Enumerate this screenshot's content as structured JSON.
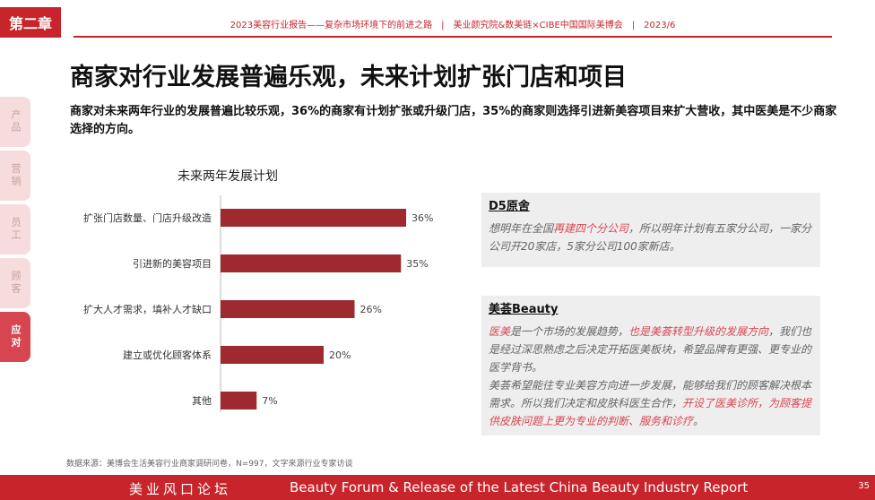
{
  "header": {
    "chapter_badge": "第二章",
    "report_line": "2023美容行业报告——复杂市场环境下的前进之路　|　美业颜究院&数美链×CIBE中国国际美博会　|　2023/6"
  },
  "title": "商家对行业发展普遍乐观，未来计划扩张门店和项目",
  "subtitle": "商家对未来两年行业的发展普遍比较乐观，36%的商家有计划扩张或升级门店，35%的商家则选择引进新美容项目来扩大营收，其中医美是不少商家选择的方向。",
  "side_tabs": [
    {
      "label": "产品",
      "active": false
    },
    {
      "label": "营销",
      "active": false
    },
    {
      "label": "员工",
      "active": false
    },
    {
      "label": "顾客",
      "active": false
    },
    {
      "label": "应对",
      "active": true
    }
  ],
  "chart_data": {
    "type": "bar",
    "orientation": "horizontal",
    "title": "未来两年发展计划",
    "categories": [
      "扩张门店数量、门店升级改造",
      "引进新的美容项目",
      "扩大人才需求，填补人才缺口",
      "建立或优化顾客体系",
      "其他"
    ],
    "values": [
      36,
      35,
      26,
      20,
      7
    ],
    "value_labels": [
      "36%",
      "35%",
      "26%",
      "20%",
      "7%"
    ],
    "unit": "%",
    "xlim": [
      0,
      40
    ],
    "bar_color": "#9e2a2f",
    "grid": false
  },
  "quotes": [
    {
      "title": "D5原舍",
      "paragraphs": [
        [
          {
            "text": "想明年在全国",
            "hl": false
          },
          {
            "text": "再建四个分公司",
            "hl": true
          },
          {
            "text": "，所以明年计划有五家分公司，一家分公司开20家店，5家分公司100家新店。",
            "hl": false
          }
        ]
      ]
    },
    {
      "title": "美荟Beauty",
      "paragraphs": [
        [
          {
            "text": "医美",
            "hl": true
          },
          {
            "text": "是一个市场的发展趋势，",
            "hl": false
          },
          {
            "text": "也是美荟转型升级的发展方向",
            "hl": true
          },
          {
            "text": "，我们也是经过深思熟虑之后决定开拓医美板块，希望品牌有更强、更专业的医学背书。",
            "hl": false
          }
        ],
        [
          {
            "text": "美荟希望能往专业美容方向进一步发展，能够给我们的顾客解决根本需求。所以我们决定和皮肤科医生合作，",
            "hl": false
          },
          {
            "text": "开设了医美诊所，为顾客提供皮肤问题上更为专业的判断、服务和诊疗",
            "hl": true
          },
          {
            "text": "。",
            "hl": false
          }
        ]
      ]
    }
  ],
  "source": "数据来源：美博会生活美容行业商家调研问卷，N=997，文字来源行业专家访谈",
  "footer": {
    "cn": "美业风口论坛",
    "en": "Beauty Forum & Release of the Latest China Beauty Industry Report",
    "page": "35"
  },
  "colors": {
    "brand_red": "#c8242b",
    "bar": "#9e2a2f",
    "highlight": "#d94550",
    "quote_bg": "#eeeeee"
  }
}
